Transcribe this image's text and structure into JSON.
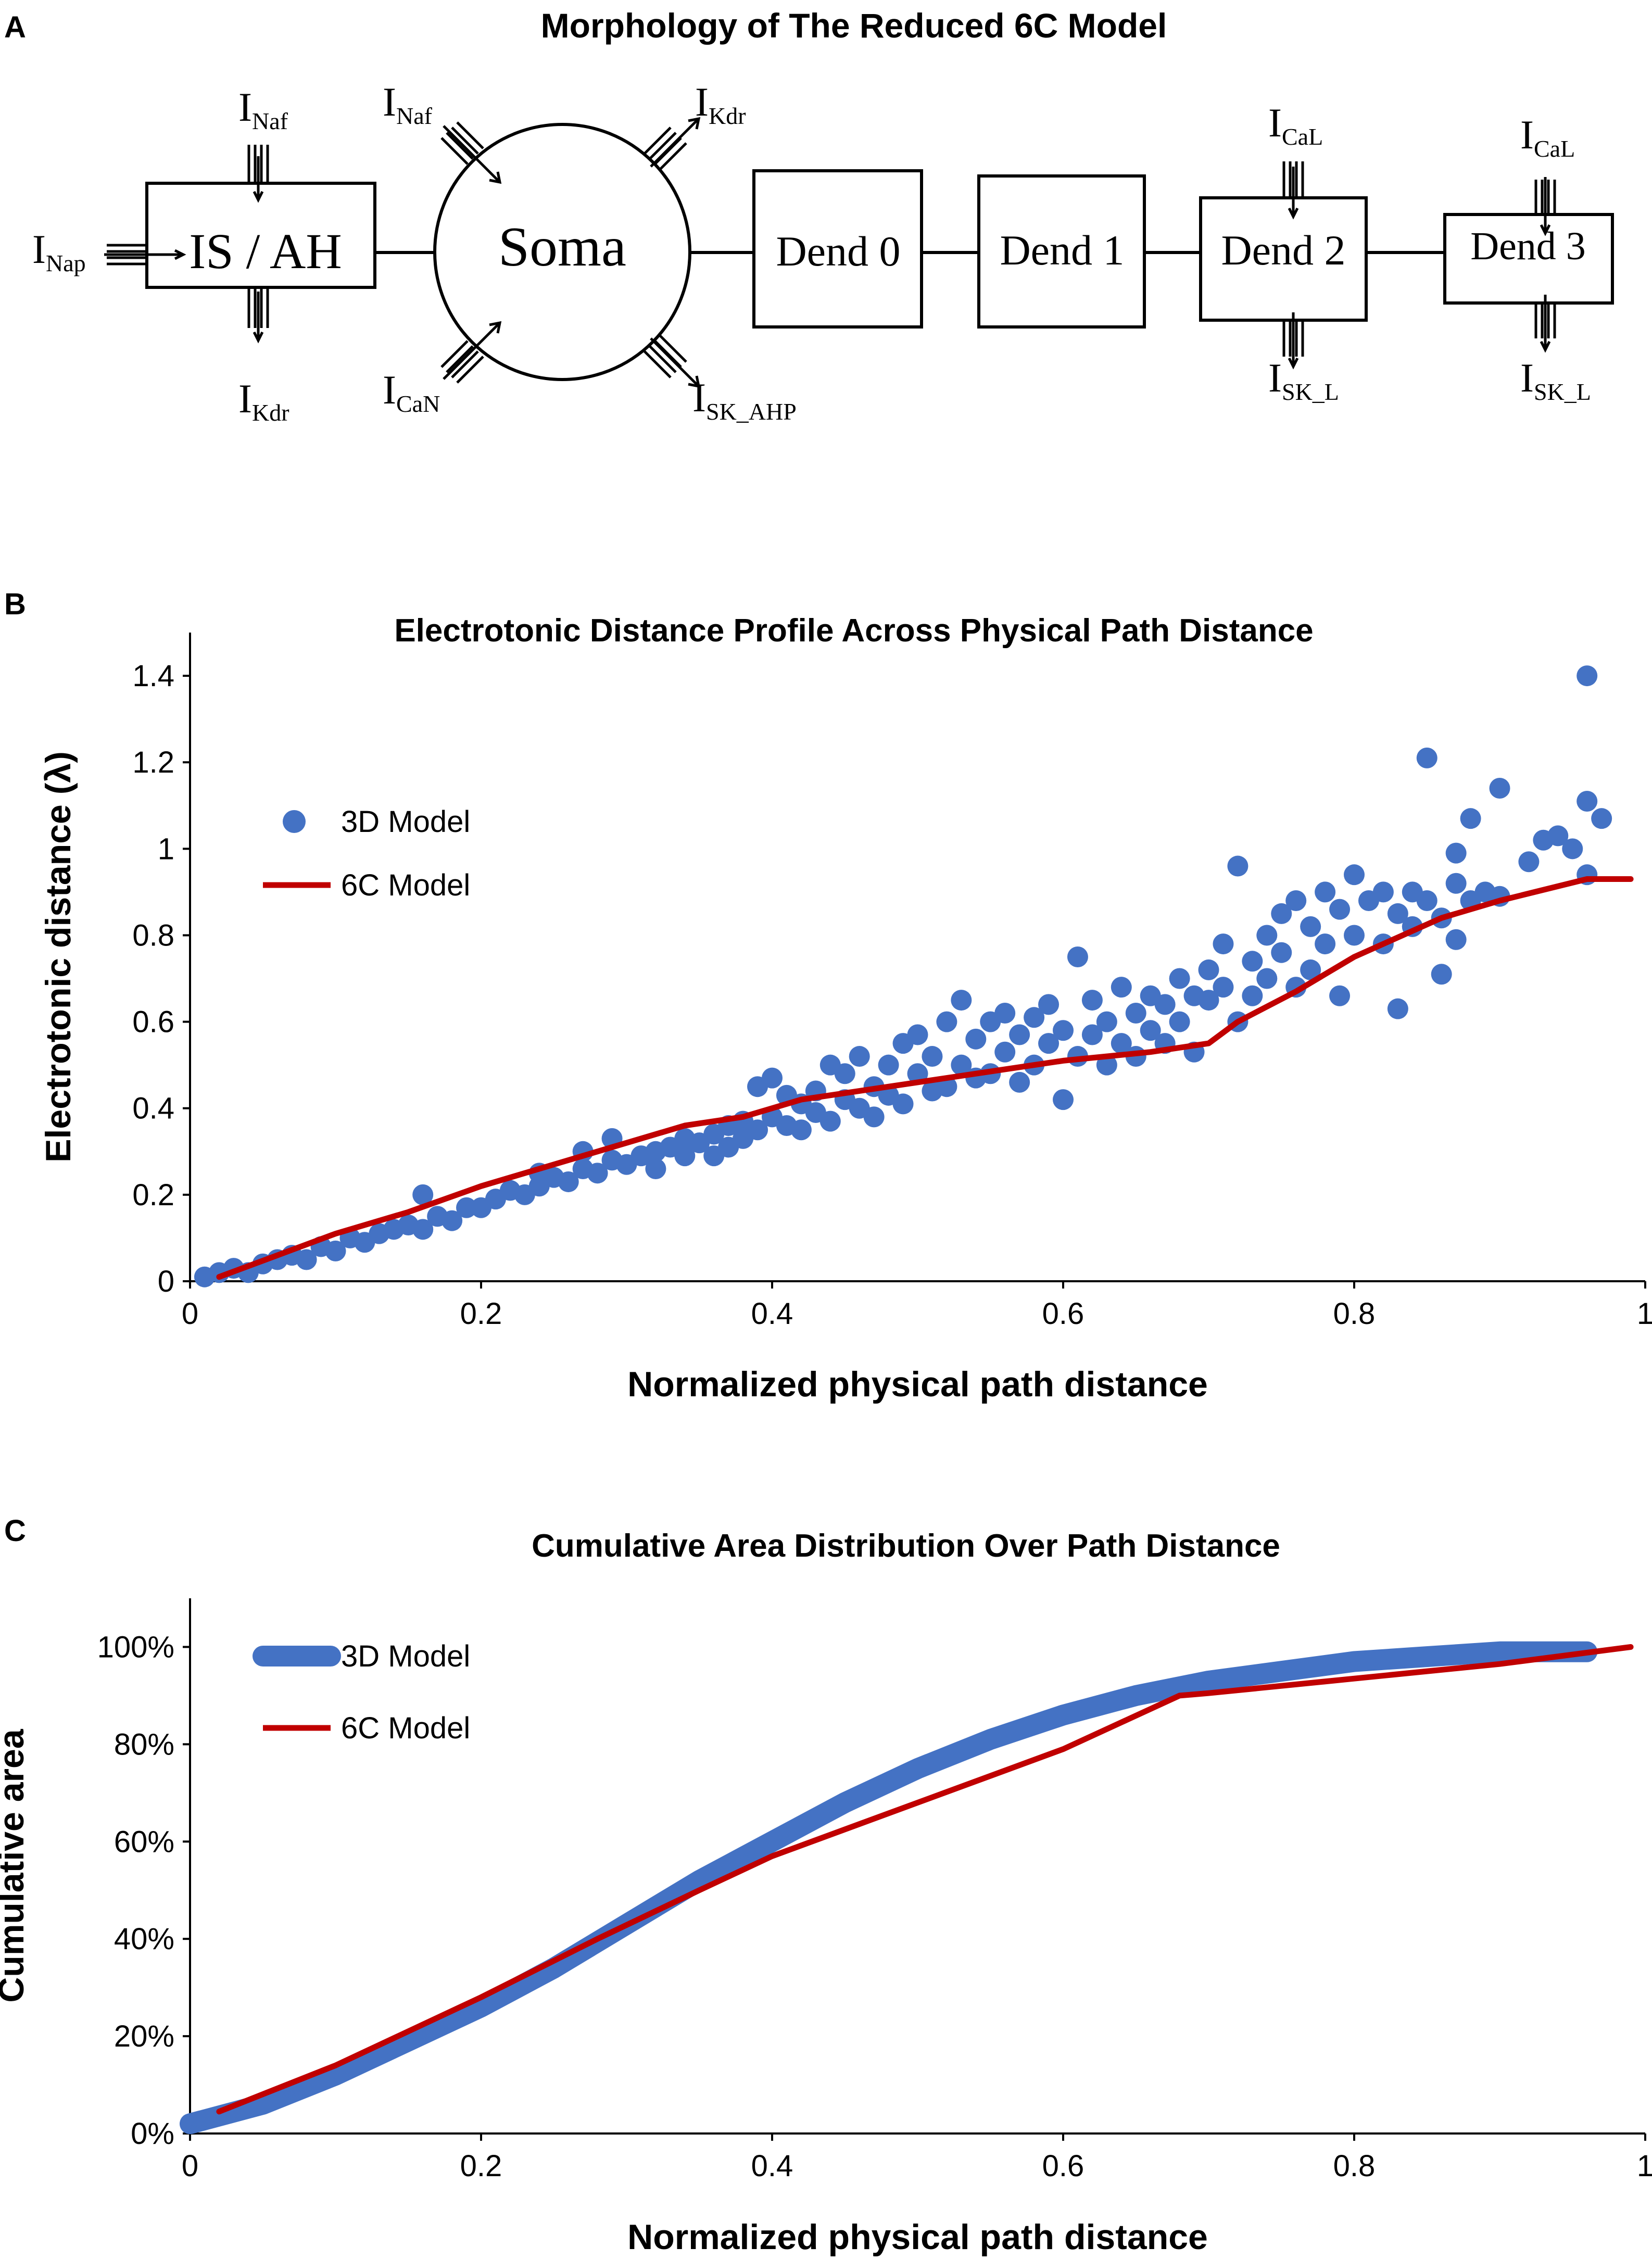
{
  "panels": {
    "a": {
      "letter": "A",
      "title": "Morphology of The Reduced 6C Model",
      "compartments": {
        "is_ah": "IS / AH",
        "soma": "Soma",
        "dend0": "Dend 0",
        "dend1": "Dend 1",
        "dend2": "Dend 2",
        "dend3": "Dend 3"
      },
      "currents": {
        "nap": {
          "base": "I",
          "sub": "Nap"
        },
        "naf_is": {
          "base": "I",
          "sub": "Naf"
        },
        "kdr_is": {
          "base": "I",
          "sub": "Kdr"
        },
        "naf_soma": {
          "base": "I",
          "sub": "Naf"
        },
        "kdr_soma": {
          "base": "I",
          "sub": "Kdr"
        },
        "can": {
          "base": "I",
          "sub": "CaN"
        },
        "sk_ahp": {
          "base": "I",
          "sub": "SK_AHP"
        },
        "cal_d2": {
          "base": "I",
          "sub": "CaL"
        },
        "skl_d2": {
          "base": "I",
          "sub": "SK_L"
        },
        "cal_d3": {
          "base": "I",
          "sub": "CaL"
        },
        "skl_d3": {
          "base": "I",
          "sub": "SK_L"
        }
      }
    },
    "b": {
      "letter": "B",
      "title": "Electrotonic Distance Profile Across Physical Path Distance"
    },
    "c": {
      "letter": "C",
      "title": "Cumulative Area Distribution Over Path Distance"
    }
  },
  "chart_data": [
    {
      "type": "scatter",
      "title": "Electrotonic Distance Profile Across Physical Path Distance",
      "xlabel": "Normalized physical path distance",
      "ylabel": "Electrotonic distance (λ)",
      "xlim": [
        0,
        1
      ],
      "ylim": [
        0,
        1.5
      ],
      "xticks": [
        0,
        0.2,
        0.4,
        0.6,
        0.8,
        1
      ],
      "xtick_labels": [
        "0",
        "0.2",
        "0.4",
        "0.6",
        "0.8",
        "1"
      ],
      "yticks": [
        0,
        0.2,
        0.4,
        0.6,
        0.8,
        1,
        1.2,
        1.4
      ],
      "ytick_labels": [
        "0",
        "0.2",
        "0.4",
        "0.6",
        "0.8",
        "1",
        "1.2",
        "1.4"
      ],
      "grid": false,
      "legend": "left",
      "series": [
        {
          "name": "3D Model",
          "style": "markers",
          "color": "#4472c4",
          "points": [
            [
              0.01,
              0.01
            ],
            [
              0.02,
              0.02
            ],
            [
              0.03,
              0.03
            ],
            [
              0.04,
              0.02
            ],
            [
              0.05,
              0.04
            ],
            [
              0.06,
              0.05
            ],
            [
              0.07,
              0.06
            ],
            [
              0.08,
              0.05
            ],
            [
              0.09,
              0.08
            ],
            [
              0.1,
              0.07
            ],
            [
              0.11,
              0.1
            ],
            [
              0.12,
              0.09
            ],
            [
              0.13,
              0.11
            ],
            [
              0.14,
              0.12
            ],
            [
              0.15,
              0.13
            ],
            [
              0.16,
              0.12
            ],
            [
              0.16,
              0.2
            ],
            [
              0.17,
              0.15
            ],
            [
              0.18,
              0.14
            ],
            [
              0.19,
              0.17
            ],
            [
              0.2,
              0.17
            ],
            [
              0.21,
              0.19
            ],
            [
              0.22,
              0.21
            ],
            [
              0.23,
              0.2
            ],
            [
              0.24,
              0.22
            ],
            [
              0.24,
              0.25
            ],
            [
              0.25,
              0.24
            ],
            [
              0.26,
              0.23
            ],
            [
              0.27,
              0.26
            ],
            [
              0.27,
              0.3
            ],
            [
              0.28,
              0.25
            ],
            [
              0.29,
              0.28
            ],
            [
              0.29,
              0.33
            ],
            [
              0.3,
              0.27
            ],
            [
              0.31,
              0.29
            ],
            [
              0.32,
              0.3
            ],
            [
              0.32,
              0.26
            ],
            [
              0.33,
              0.31
            ],
            [
              0.34,
              0.33
            ],
            [
              0.34,
              0.29
            ],
            [
              0.35,
              0.32
            ],
            [
              0.36,
              0.34
            ],
            [
              0.36,
              0.29
            ],
            [
              0.37,
              0.36
            ],
            [
              0.37,
              0.31
            ],
            [
              0.38,
              0.37
            ],
            [
              0.38,
              0.33
            ],
            [
              0.39,
              0.35
            ],
            [
              0.39,
              0.45
            ],
            [
              0.4,
              0.38
            ],
            [
              0.4,
              0.47
            ],
            [
              0.41,
              0.36
            ],
            [
              0.41,
              0.43
            ],
            [
              0.42,
              0.41
            ],
            [
              0.42,
              0.35
            ],
            [
              0.43,
              0.44
            ],
            [
              0.43,
              0.39
            ],
            [
              0.44,
              0.5
            ],
            [
              0.44,
              0.37
            ],
            [
              0.45,
              0.42
            ],
            [
              0.45,
              0.48
            ],
            [
              0.46,
              0.4
            ],
            [
              0.46,
              0.52
            ],
            [
              0.47,
              0.45
            ],
            [
              0.47,
              0.38
            ],
            [
              0.48,
              0.5
            ],
            [
              0.48,
              0.43
            ],
            [
              0.49,
              0.55
            ],
            [
              0.49,
              0.41
            ],
            [
              0.5,
              0.48
            ],
            [
              0.5,
              0.57
            ],
            [
              0.51,
              0.44
            ],
            [
              0.51,
              0.52
            ],
            [
              0.52,
              0.6
            ],
            [
              0.52,
              0.45
            ],
            [
              0.53,
              0.65
            ],
            [
              0.53,
              0.5
            ],
            [
              0.54,
              0.47
            ],
            [
              0.54,
              0.56
            ],
            [
              0.55,
              0.6
            ],
            [
              0.55,
              0.48
            ],
            [
              0.56,
              0.53
            ],
            [
              0.56,
              0.62
            ],
            [
              0.57,
              0.46
            ],
            [
              0.57,
              0.57
            ],
            [
              0.58,
              0.61
            ],
            [
              0.58,
              0.5
            ],
            [
              0.59,
              0.55
            ],
            [
              0.59,
              0.64
            ],
            [
              0.6,
              0.42
            ],
            [
              0.6,
              0.58
            ],
            [
              0.61,
              0.75
            ],
            [
              0.61,
              0.52
            ],
            [
              0.62,
              0.65
            ],
            [
              0.62,
              0.57
            ],
            [
              0.63,
              0.6
            ],
            [
              0.63,
              0.5
            ],
            [
              0.64,
              0.68
            ],
            [
              0.64,
              0.55
            ],
            [
              0.65,
              0.62
            ],
            [
              0.65,
              0.52
            ],
            [
              0.66,
              0.66
            ],
            [
              0.66,
              0.58
            ],
            [
              0.67,
              0.64
            ],
            [
              0.67,
              0.55
            ],
            [
              0.68,
              0.7
            ],
            [
              0.68,
              0.6
            ],
            [
              0.69,
              0.66
            ],
            [
              0.69,
              0.53
            ],
            [
              0.7,
              0.72
            ],
            [
              0.7,
              0.65
            ],
            [
              0.71,
              0.68
            ],
            [
              0.71,
              0.78
            ],
            [
              0.72,
              0.6
            ],
            [
              0.72,
              0.96
            ],
            [
              0.73,
              0.74
            ],
            [
              0.73,
              0.66
            ],
            [
              0.74,
              0.8
            ],
            [
              0.74,
              0.7
            ],
            [
              0.75,
              0.85
            ],
            [
              0.75,
              0.76
            ],
            [
              0.76,
              0.68
            ],
            [
              0.76,
              0.88
            ],
            [
              0.77,
              0.82
            ],
            [
              0.77,
              0.72
            ],
            [
              0.78,
              0.78
            ],
            [
              0.78,
              0.9
            ],
            [
              0.79,
              0.86
            ],
            [
              0.79,
              0.66
            ],
            [
              0.8,
              0.8
            ],
            [
              0.8,
              0.94
            ],
            [
              0.81,
              0.88
            ],
            [
              0.82,
              0.78
            ],
            [
              0.82,
              0.9
            ],
            [
              0.83,
              0.85
            ],
            [
              0.83,
              0.63
            ],
            [
              0.84,
              0.9
            ],
            [
              0.84,
              0.82
            ],
            [
              0.85,
              1.21
            ],
            [
              0.85,
              0.88
            ],
            [
              0.86,
              0.71
            ],
            [
              0.86,
              0.84
            ],
            [
              0.87,
              0.92
            ],
            [
              0.87,
              0.99
            ],
            [
              0.87,
              0.79
            ],
            [
              0.88,
              1.07
            ],
            [
              0.88,
              0.88
            ],
            [
              0.89,
              0.9
            ],
            [
              0.9,
              1.14
            ],
            [
              0.9,
              0.89
            ],
            [
              0.92,
              0.97
            ],
            [
              0.93,
              1.02
            ],
            [
              0.94,
              1.03
            ],
            [
              0.96,
              1.4
            ],
            [
              0.96,
              1.11
            ],
            [
              0.97,
              1.07
            ],
            [
              0.96,
              0.94
            ],
            [
              0.95,
              1.0
            ]
          ]
        },
        {
          "name": "6C Model",
          "style": "line",
          "color": "#c00000",
          "points": [
            [
              0.02,
              0.01
            ],
            [
              0.1,
              0.11
            ],
            [
              0.15,
              0.16
            ],
            [
              0.2,
              0.22
            ],
            [
              0.28,
              0.3
            ],
            [
              0.34,
              0.36
            ],
            [
              0.38,
              0.38
            ],
            [
              0.42,
              0.42
            ],
            [
              0.5,
              0.46
            ],
            [
              0.6,
              0.51
            ],
            [
              0.66,
              0.53
            ],
            [
              0.7,
              0.55
            ],
            [
              0.72,
              0.6
            ],
            [
              0.76,
              0.67
            ],
            [
              0.8,
              0.75
            ],
            [
              0.86,
              0.84
            ],
            [
              0.9,
              0.88
            ],
            [
              0.96,
              0.93
            ],
            [
              0.99,
              0.93
            ]
          ]
        }
      ]
    },
    {
      "type": "line",
      "title": "Cumulative Area Distribution Over Path Distance",
      "xlabel": "Normalized physical path distance",
      "ylabel": "Cumulative area",
      "xlim": [
        0,
        1
      ],
      "ylim": [
        0,
        1.1
      ],
      "xticks": [
        0,
        0.2,
        0.4,
        0.6,
        0.8,
        1
      ],
      "xtick_labels": [
        "0",
        "0.2",
        "0.4",
        "0.6",
        "0.8",
        "1"
      ],
      "yticks": [
        0,
        0.2,
        0.4,
        0.6,
        0.8,
        1
      ],
      "ytick_labels": [
        "0%",
        "20%",
        "40%",
        "60%",
        "80%",
        "100%"
      ],
      "grid": false,
      "legend": "top-left",
      "series": [
        {
          "name": "3D Model",
          "style": "thick-line",
          "color": "#4472c4",
          "points": [
            [
              0,
              0.02
            ],
            [
              0.05,
              0.06
            ],
            [
              0.1,
              0.12
            ],
            [
              0.15,
              0.19
            ],
            [
              0.2,
              0.26
            ],
            [
              0.25,
              0.34
            ],
            [
              0.3,
              0.43
            ],
            [
              0.35,
              0.52
            ],
            [
              0.4,
              0.6
            ],
            [
              0.45,
              0.68
            ],
            [
              0.5,
              0.75
            ],
            [
              0.55,
              0.81
            ],
            [
              0.6,
              0.86
            ],
            [
              0.65,
              0.9
            ],
            [
              0.7,
              0.93
            ],
            [
              0.75,
              0.95
            ],
            [
              0.8,
              0.97
            ],
            [
              0.85,
              0.98
            ],
            [
              0.9,
              0.99
            ],
            [
              0.96,
              0.99
            ]
          ]
        },
        {
          "name": "6C Model",
          "style": "line",
          "color": "#c00000",
          "points": [
            [
              0.02,
              0.045
            ],
            [
              0.1,
              0.14
            ],
            [
              0.2,
              0.28
            ],
            [
              0.28,
              0.4
            ],
            [
              0.35,
              0.5
            ],
            [
              0.4,
              0.57
            ],
            [
              0.5,
              0.68
            ],
            [
              0.6,
              0.79
            ],
            [
              0.68,
              0.9
            ],
            [
              0.7,
              0.905
            ],
            [
              0.8,
              0.935
            ],
            [
              0.9,
              0.965
            ],
            [
              0.99,
              1.0
            ]
          ]
        }
      ]
    }
  ]
}
